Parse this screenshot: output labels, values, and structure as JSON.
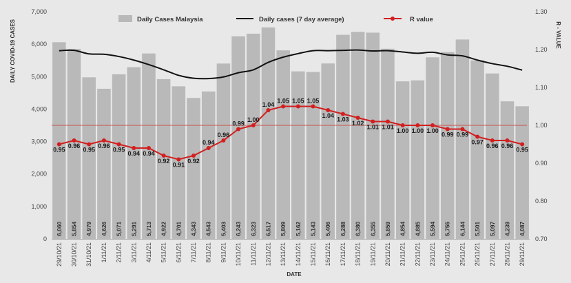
{
  "chart_data": {
    "type": "bar",
    "legend_position": "top",
    "grid": false,
    "xlabel": "DATE",
    "ylabel": "DAILY COVID-19 CASES",
    "y2label": "R - VALUE",
    "ylim": [
      0,
      7000
    ],
    "y2lim": [
      0.7,
      1.3
    ],
    "yticks": [
      "0",
      "1,000",
      "2,000",
      "3,000",
      "4,000",
      "5,000",
      "6,000",
      "7,000"
    ],
    "y2ticks": [
      "0.70",
      "0.80",
      "0.90",
      "1.00",
      "1.10",
      "1.20",
      "1.30"
    ],
    "categories": [
      "29/10/21",
      "30/10/21",
      "31/10/21",
      "1/11/21",
      "2/11/21",
      "3/11/21",
      "4/11/21",
      "5/11/21",
      "6/11/21",
      "7/11/21",
      "8/11/21",
      "9/11/21",
      "10/11/21",
      "11/11/21",
      "12/11/21",
      "13/11/21",
      "14/11/21",
      "15/11/21",
      "16/11/21",
      "17/11/21",
      "18/11/21",
      "19/11/21",
      "20/11/21",
      "21/11/21",
      "22/11/21",
      "23/11/21",
      "24/11/21",
      "25/11/21",
      "26/11/21",
      "27/11/21",
      "28/11/21",
      "29/11/21"
    ],
    "series": [
      {
        "name": "Daily Cases Malaysia",
        "type": "bar",
        "axis": "left",
        "color": "#b9b9b9",
        "values": [
          6060,
          5854,
          4979,
          4626,
          5071,
          5291,
          5713,
          4922,
          4701,
          4343,
          4543,
          5403,
          6243,
          6323,
          6517,
          5809,
          5162,
          5143,
          5406,
          6288,
          6380,
          6355,
          5859,
          4854,
          4885,
          5594,
          5755,
          6144,
          5501,
          5097,
          4239,
          4087
        ],
        "value_labels": [
          "6,060",
          "5,854",
          "4,979",
          "4,626",
          "5,071",
          "5,291",
          "5,713",
          "4,922",
          "4,701",
          "4,343",
          "4,543",
          "5,403",
          "6,243",
          "6,323",
          "6,517",
          "5,809",
          "5,162",
          "5,143",
          "5,406",
          "6,288",
          "6,380",
          "6,355",
          "5,859",
          "4,854",
          "4,885",
          "5,594",
          "5,755",
          "6,144",
          "5,501",
          "5,097",
          "4,239",
          "4,087"
        ]
      },
      {
        "name": "Daily cases (7 day average)",
        "type": "line",
        "axis": "left",
        "color": "#111111",
        "values": [
          5800,
          5810,
          5700,
          5690,
          5620,
          5510,
          5370,
          5210,
          5040,
          4950,
          4940,
          4990,
          5120,
          5210,
          5440,
          5600,
          5710,
          5800,
          5800,
          5810,
          5820,
          5790,
          5800,
          5760,
          5720,
          5750,
          5670,
          5640,
          5510,
          5400,
          5320,
          5200
        ]
      },
      {
        "name": "R value",
        "type": "line",
        "axis": "right",
        "marker": "circle",
        "color": "#d21f1f",
        "values": [
          0.95,
          0.96,
          0.95,
          0.96,
          0.95,
          0.94,
          0.94,
          0.92,
          0.91,
          0.92,
          0.94,
          0.96,
          0.99,
          1.0,
          1.04,
          1.05,
          1.05,
          1.05,
          1.04,
          1.03,
          1.02,
          1.01,
          1.01,
          1.0,
          1.0,
          1.0,
          0.99,
          0.99,
          0.97,
          0.96,
          0.96,
          0.95
        ],
        "value_labels": [
          "0.95",
          "0.96",
          "0.95",
          "0.96",
          "0.95",
          "0.94",
          "0.94",
          "0.92",
          "0.91",
          "0.92",
          "0.94",
          "0.96",
          "0.99",
          "1.00",
          "1.04",
          "1.05",
          "1.05",
          "1.05",
          "1.04",
          "1.03",
          "1.02",
          "1.01",
          "1.01",
          "1.00",
          "1.00",
          "1.00",
          "0.99",
          "0.99",
          "0.97",
          "0.96",
          "0.96",
          "0.95"
        ]
      }
    ],
    "reference_line": {
      "axis": "right",
      "value": 1.0,
      "color": "#c8524f"
    }
  }
}
